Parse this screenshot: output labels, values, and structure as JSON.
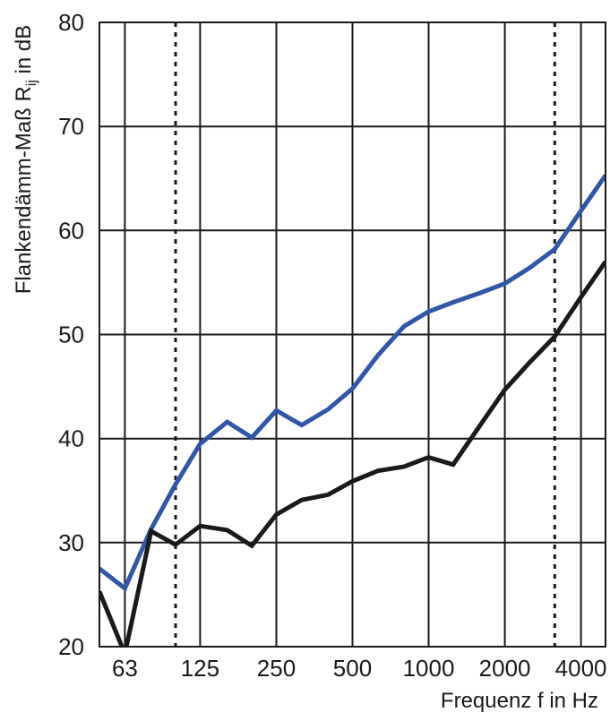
{
  "chart_data": {
    "type": "line",
    "title": "",
    "xlabel": "Frequenz f in Hz",
    "ylabel": {
      "main": "Flankendämm-Maß R",
      "sub": "ij",
      "suffix": " in dB"
    },
    "x_scale": "log",
    "x": [
      50,
      63,
      80,
      100,
      125,
      160,
      200,
      250,
      315,
      400,
      500,
      630,
      800,
      1000,
      1250,
      1600,
      2000,
      2500,
      3150,
      4000,
      5000
    ],
    "xlim": [
      50,
      5000
    ],
    "ylim": [
      20,
      80
    ],
    "yticks": [
      20,
      30,
      40,
      50,
      60,
      70,
      80
    ],
    "xtick_labels": [
      {
        "value": 63,
        "label": "63"
      },
      {
        "value": 125,
        "label": "125"
      },
      {
        "value": 250,
        "label": "250"
      },
      {
        "value": 500,
        "label": "500"
      },
      {
        "value": 1000,
        "label": "1000"
      },
      {
        "value": 2000,
        "label": "2000"
      },
      {
        "value": 4000,
        "label": "4000"
      }
    ],
    "grid_x": [
      63,
      125,
      250,
      500,
      1000,
      2000,
      4000
    ],
    "dotted_x": [
      100,
      3150
    ],
    "grid": true,
    "series": [
      {
        "color": "#2f56a8",
        "values": [
          27.5,
          25.6,
          31.3,
          35.6,
          39.5,
          41.6,
          40.1,
          42.7,
          41.3,
          42.8,
          44.8,
          48.0,
          50.8,
          52.2,
          53.1,
          54.0,
          54.9,
          56.4,
          58.2,
          61.9,
          65.3
        ]
      },
      {
        "color": "#1a1a1a",
        "values": [
          25.3,
          19.3,
          31.1,
          29.8,
          31.6,
          31.2,
          29.7,
          32.7,
          34.1,
          34.6,
          35.9,
          36.9,
          37.3,
          38.2,
          37.5,
          41.3,
          44.7,
          47.3,
          49.8,
          53.6,
          57.0
        ]
      }
    ]
  }
}
